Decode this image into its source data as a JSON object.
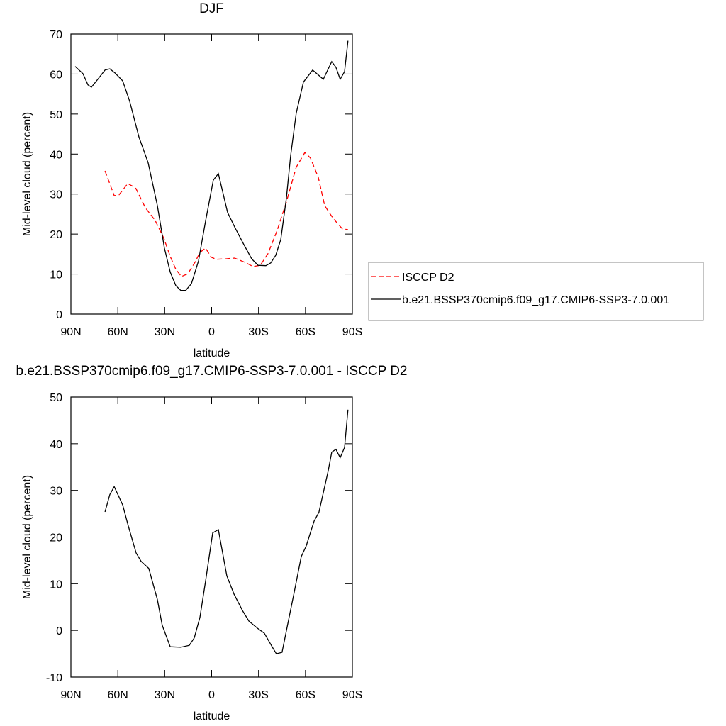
{
  "chart_data": [
    {
      "type": "line",
      "title": "DJF",
      "xlabel": "latitude",
      "ylabel": "Mid-level cloud (percent)",
      "xlim": [
        90,
        -90
      ],
      "xticks": [
        {
          "value": 90,
          "label": "90N"
        },
        {
          "value": 60,
          "label": "60N"
        },
        {
          "value": 30,
          "label": "30N"
        },
        0,
        {
          "value": -30,
          "label": "30S"
        },
        {
          "value": -60,
          "label": "60S"
        },
        {
          "value": -90,
          "label": "90S"
        }
      ],
      "ylim": [
        0,
        70
      ],
      "yticks": [
        0,
        10,
        20,
        30,
        40,
        50,
        60,
        70
      ],
      "legend": "outside right",
      "series": [
        {
          "name": "ISCCP D2",
          "color": "#ff0000",
          "dash": true,
          "x": [
            68.2,
            62.3,
            59.2,
            53.7,
            48.7,
            42.4,
            36.1,
            30.6,
            26.5,
            22.9,
            19.3,
            15.2,
            10.7,
            7.5,
            3.9,
            0.2,
            -3.0,
            -8.9,
            -14.7,
            -21.5,
            -26.5,
            -31.1,
            -36.0,
            -41.9,
            -47.8,
            -54.1,
            -59.6,
            -63.2,
            -68.2,
            -72.3,
            -77.7,
            -83.6,
            -87.2
          ],
          "values": [
            35.8,
            29.6,
            29.8,
            32.6,
            31.6,
            26.6,
            23.4,
            19.0,
            14.4,
            11.2,
            9.4,
            10.1,
            12.9,
            15.4,
            16.5,
            14.2,
            13.7,
            13.8,
            14.0,
            12.9,
            11.9,
            12.2,
            15.1,
            20.9,
            28.0,
            36.7,
            40.4,
            39.0,
            34.2,
            27.1,
            23.9,
            21.3,
            21.1
          ]
        },
        {
          "name": "b.e21.BSSP370cmip6.f09_g17.CMIP6-SSP3-7.0.001",
          "color": "#000000",
          "dash": false,
          "x": [
            87.3,
            82.3,
            79.1,
            76.9,
            73.2,
            68.2,
            65.1,
            61.9,
            56.9,
            52.4,
            46.5,
            40.6,
            34.7,
            30.2,
            26.5,
            22.9,
            19.7,
            16.6,
            12.9,
            8.4,
            3.9,
            -1.1,
            -4.3,
            -10.2,
            -14.7,
            -20.6,
            -25.6,
            -29.7,
            -34.7,
            -37.8,
            -41.0,
            -44.2,
            -47.8,
            -50.5,
            -54.1,
            -58.7,
            -64.6,
            -68.2,
            -71.4,
            -76.8,
            -79.5,
            -82.2,
            -85.0,
            -87.2
          ],
          "values": [
            61.9,
            60.1,
            57.3,
            56.7,
            58.5,
            61.0,
            61.3,
            60.3,
            58.3,
            53.2,
            44.3,
            37.8,
            27.1,
            16.5,
            10.5,
            7.1,
            5.9,
            5.9,
            7.6,
            13.3,
            23.2,
            33.5,
            35.1,
            25.4,
            21.8,
            17.4,
            13.8,
            12.2,
            12.1,
            12.8,
            14.7,
            18.6,
            28.9,
            39.5,
            50.2,
            58.0,
            61.0,
            59.8,
            58.7,
            63.1,
            61.7,
            58.7,
            60.6,
            68.3
          ]
        }
      ]
    },
    {
      "type": "line",
      "title": "b.e21.BSSP370cmip6.f09_g17.CMIP6-SSP3-7.0.001 - ISCCP D2",
      "xlabel": "latitude",
      "ylabel": "Mid-level cloud (percent)",
      "xlim": [
        90,
        -90
      ],
      "xticks": [
        {
          "value": 90,
          "label": "90N"
        },
        {
          "value": 60,
          "label": "60N"
        },
        {
          "value": 30,
          "label": "30N"
        },
        0,
        {
          "value": -30,
          "label": "30S"
        },
        {
          "value": -60,
          "label": "60S"
        },
        {
          "value": -90,
          "label": "90S"
        }
      ],
      "ylim": [
        -10,
        50
      ],
      "yticks": [
        -10,
        0,
        10,
        20,
        30,
        40,
        50
      ],
      "series": [
        {
          "color": "#000000",
          "dash": false,
          "x": [
            68.2,
            65.1,
            62.3,
            56.9,
            53.3,
            48.3,
            45.1,
            40.2,
            34.7,
            31.6,
            26.5,
            19.7,
            14.3,
            11.1,
            7.5,
            3.9,
            -0.7,
            -4.3,
            -9.7,
            -14.3,
            -19.7,
            -23.8,
            -29.2,
            -33.7,
            -39.2,
            -41.4,
            -45.0,
            -48.7,
            -52.8,
            -57.3,
            -60.5,
            -65.5,
            -68.6,
            -74.5,
            -76.8,
            -79.5,
            -82.2,
            -85.0,
            -87.2
          ],
          "values": [
            25.4,
            29.1,
            30.8,
            26.9,
            22.4,
            16.6,
            14.8,
            13.3,
            6.6,
            1.1,
            -3.5,
            -3.6,
            -3.2,
            -1.6,
            2.8,
            10.5,
            20.9,
            21.6,
            11.7,
            7.8,
            4.3,
            2.0,
            0.5,
            -0.6,
            -3.8,
            -5.0,
            -4.7,
            1.4,
            8.2,
            15.8,
            18.1,
            23.4,
            25.3,
            34.1,
            38.2,
            38.8,
            37.0,
            39.2,
            47.3
          ]
        }
      ]
    }
  ]
}
